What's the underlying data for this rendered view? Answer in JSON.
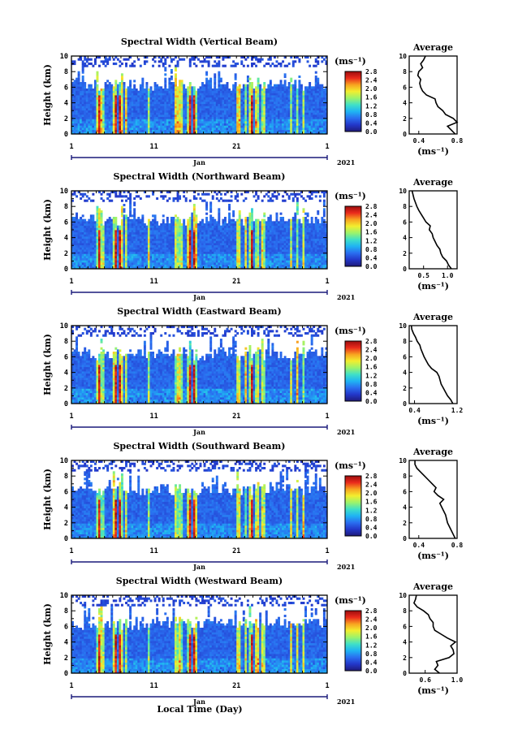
{
  "figure": {
    "x_axis_label": "Local Time (Day)",
    "colorbar_unit": "(ms⁻¹)",
    "colorbar_ticks": [
      "0.0",
      "0.4",
      "0.8",
      "1.2",
      "1.6",
      "2.0",
      "2.4",
      "2.8"
    ],
    "colorbar_stops": [
      "#1f1a7a",
      "#2337c9",
      "#2a6ef0",
      "#1fb4f3",
      "#3fe0c8",
      "#9cf36b",
      "#f2ee2f",
      "#f8a320",
      "#ea2a1c",
      "#9c0d0d"
    ],
    "y_ticks": [
      "10",
      "8",
      "6",
      "4",
      "2",
      "0"
    ],
    "day_ticks": [
      "1",
      "11",
      "21",
      "1"
    ],
    "month_label": "Jan",
    "year_label": "2021",
    "avg_unit": "(ms⁻¹)"
  },
  "chart_data": [
    {
      "type": "heatmap",
      "title": "Spectral Width (Vertical Beam)",
      "ylabel": "Height (km)",
      "ylim": [
        0,
        10
      ],
      "x_range_days": [
        1,
        32
      ],
      "color_range": [
        0,
        2.8
      ],
      "average_profile": {
        "title": "Average",
        "xlim": [
          0.3,
          0.8
        ],
        "xticks": [
          "0.4",
          "0.8"
        ],
        "height_km": [
          0,
          0.5,
          1,
          1.5,
          2,
          2.5,
          3,
          3.5,
          4,
          4.5,
          5,
          5.5,
          6,
          6.5,
          7,
          7.5,
          8,
          8.5,
          9,
          9.5,
          10
        ],
        "values": [
          0.78,
          0.74,
          0.7,
          0.8,
          0.76,
          0.68,
          0.65,
          0.6,
          0.58,
          0.57,
          0.48,
          0.44,
          0.42,
          0.41,
          0.42,
          0.39,
          0.4,
          0.44,
          0.42,
          0.45,
          0.47
        ]
      }
    },
    {
      "type": "heatmap",
      "title": "Spectral Width (Northward Beam)",
      "ylabel": "Height (km)",
      "ylim": [
        0,
        10
      ],
      "x_range_days": [
        1,
        32
      ],
      "color_range": [
        0,
        2.8
      ],
      "average_profile": {
        "title": "Average",
        "xlim": [
          0.2,
          1.2
        ],
        "xticks": [
          "0.5",
          "1.0"
        ],
        "height_km": [
          0,
          0.5,
          1,
          1.5,
          2,
          2.5,
          3,
          3.5,
          4,
          4.5,
          5,
          5.5,
          6,
          6.5,
          7,
          7.5,
          8,
          8.5,
          9,
          9.5,
          10
        ],
        "values": [
          1.08,
          1.02,
          0.98,
          0.9,
          0.86,
          0.84,
          0.78,
          0.74,
          0.7,
          0.68,
          0.62,
          0.64,
          0.55,
          0.5,
          0.45,
          0.4,
          0.36,
          0.33,
          0.3,
          0.28,
          0.26
        ]
      }
    },
    {
      "type": "heatmap",
      "title": "Spectral Width (Eastward Beam)",
      "ylabel": "Height (km)",
      "ylim": [
        0,
        10
      ],
      "x_range_days": [
        1,
        32
      ],
      "color_range": [
        0,
        2.8
      ],
      "average_profile": {
        "title": "Average",
        "xlim": [
          0.3,
          1.2
        ],
        "xticks": [
          "0.4",
          "1.2"
        ],
        "height_km": [
          0,
          0.5,
          1,
          1.5,
          2,
          2.5,
          3,
          3.5,
          4,
          4.5,
          5,
          5.5,
          6,
          6.5,
          7,
          7.5,
          8,
          8.5,
          9,
          9.5,
          10
        ],
        "values": [
          1.12,
          1.08,
          1.02,
          0.98,
          0.94,
          0.9,
          0.88,
          0.86,
          0.82,
          0.72,
          0.66,
          0.62,
          0.58,
          0.55,
          0.52,
          0.5,
          0.45,
          0.42,
          0.38,
          0.35,
          0.34
        ]
      }
    },
    {
      "type": "heatmap",
      "title": "Spectral Width (Southward Beam)",
      "ylabel": "Height (km)",
      "ylim": [
        0,
        10
      ],
      "x_range_days": [
        1,
        32
      ],
      "color_range": [
        0,
        2.8
      ],
      "average_profile": {
        "title": "Average",
        "xlim": [
          0.3,
          0.8
        ],
        "xticks": [
          "0.4",
          "0.8"
        ],
        "height_km": [
          0,
          0.5,
          1,
          1.5,
          2,
          2.5,
          3,
          3.5,
          4,
          4.5,
          5,
          5.5,
          6,
          6.5,
          7,
          7.5,
          8,
          8.5,
          9,
          9.5,
          10
        ],
        "values": [
          0.78,
          0.76,
          0.74,
          0.72,
          0.7,
          0.69,
          0.68,
          0.66,
          0.64,
          0.62,
          0.66,
          0.6,
          0.56,
          0.58,
          0.54,
          0.5,
          0.46,
          0.42,
          0.38,
          0.36,
          0.36
        ]
      }
    },
    {
      "type": "heatmap",
      "title": "Spectral Width (Westward Beam)",
      "ylabel": "Height (km)",
      "ylim": [
        0,
        10
      ],
      "x_range_days": [
        1,
        32
      ],
      "color_range": [
        0,
        2.8
      ],
      "average_profile": {
        "title": "Average",
        "xlim": [
          0.4,
          1.0
        ],
        "xticks": [
          "0.6",
          "1.0"
        ],
        "height_km": [
          0,
          0.5,
          1,
          1.5,
          2,
          2.5,
          3,
          3.5,
          4,
          4.5,
          5,
          5.5,
          6,
          6.5,
          7,
          7.5,
          8,
          8.5,
          9,
          9.5,
          10
        ],
        "values": [
          0.78,
          0.72,
          0.76,
          0.74,
          0.9,
          0.96,
          0.95,
          0.92,
          0.98,
          0.88,
          0.8,
          0.72,
          0.7,
          0.7,
          0.66,
          0.64,
          0.58,
          0.5,
          0.46,
          0.48,
          0.49
        ]
      }
    }
  ]
}
